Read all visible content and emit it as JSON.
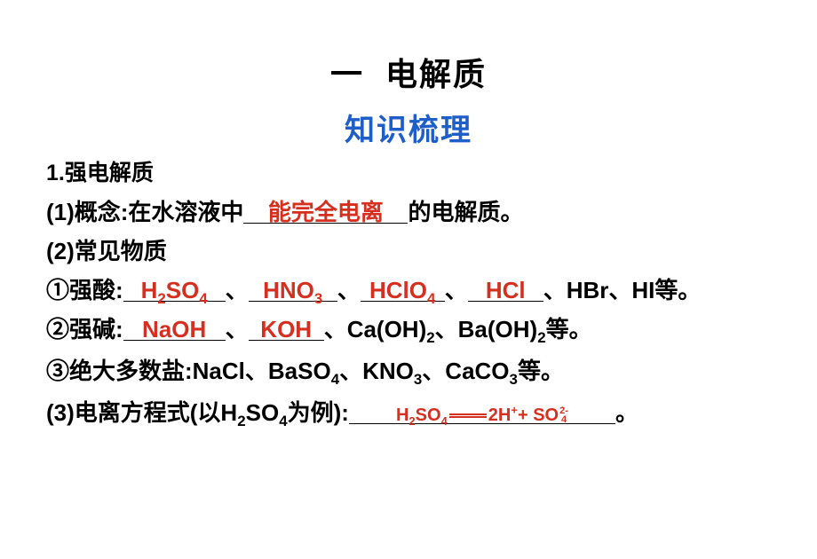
{
  "colors": {
    "text_main": "#000000",
    "text_accent": "#d72f1f",
    "text_subtitle": "#1d5ec9",
    "background": "#ffffff",
    "underline": "#000000"
  },
  "typography": {
    "title_fontsize_pt": 36,
    "subtitle_fontsize_pt": 34,
    "body_fontsize_pt": 26,
    "heading_fontsize_pt": 25,
    "equation_fontsize_pt": 20,
    "font_family": "SimHei / Heiti",
    "font_weight": "bold",
    "line_height": 1.7
  },
  "title": {
    "number": "一",
    "text": "电解质"
  },
  "subtitle": "知识梳理",
  "section1": {
    "heading": "1.强电解质",
    "item1": {
      "prefix": "(1)概念:在水溶液中",
      "blank": "能完全电离",
      "suffix": "的电解质。"
    },
    "item2_label": "(2)常见物质",
    "acids": {
      "label": "①强酸:",
      "blanks": [
        "H₂SO₄",
        "HNO₃",
        "HClO₄",
        "HCl"
      ],
      "rest_prefix": "、HBr、HI等。",
      "blanks_plain": {
        "b1": "H",
        "b2": "HNO",
        "b3": "HClO",
        "b4": "HCl"
      },
      "sep": "、"
    },
    "bases": {
      "label": "②强碱:",
      "blanks": [
        "NaOH",
        "KOH"
      ],
      "rest": "、Ca(OH)₂、Ba(OH)₂等。",
      "rest_a": "、Ca(OH)",
      "rest_b": "、Ba(OH)",
      "rest_c": "等。"
    },
    "salts": {
      "label": "③绝大多数盐:NaCl、BaSO",
      "mid": "、KNO",
      "mid2": "、CaCO",
      "tail": "等。"
    },
    "item3": {
      "prefix_a": "(3)电离方程式(以H",
      "prefix_b": "SO",
      "prefix_c": "为例):",
      "eq_lhs": "H",
      "eq_lhs2": "SO",
      "eq_rhs1": "2H",
      "eq_plus": "+",
      "eq_rhs2": "SO",
      "so4_sup": "2-",
      "so4_sub": "4",
      "suffix": "。"
    }
  }
}
